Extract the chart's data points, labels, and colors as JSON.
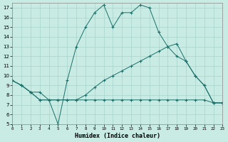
{
  "xlabel": "Humidex (Indice chaleur)",
  "xlim": [
    0,
    23
  ],
  "ylim": [
    5,
    17.5
  ],
  "yticks": [
    5,
    6,
    7,
    8,
    9,
    10,
    11,
    12,
    13,
    14,
    15,
    16,
    17
  ],
  "xticks": [
    0,
    1,
    2,
    3,
    4,
    5,
    6,
    7,
    8,
    9,
    10,
    11,
    12,
    13,
    14,
    15,
    16,
    17,
    18,
    19,
    20,
    21,
    22,
    23
  ],
  "bg_color": "#c8ebe4",
  "line_color": "#1a7068",
  "grid_color": "#a8d4cc",
  "line1_x": [
    0,
    1,
    2,
    3,
    4,
    5,
    6,
    7,
    8,
    9,
    10,
    11,
    12,
    13,
    14,
    15,
    16,
    17,
    18,
    19,
    20,
    21,
    22,
    23
  ],
  "line1_y": [
    9.5,
    9.0,
    8.3,
    7.5,
    7.5,
    5.0,
    9.5,
    13.0,
    15.0,
    16.5,
    17.3,
    15.0,
    16.5,
    16.5,
    17.3,
    17.0,
    14.5,
    13.0,
    12.0,
    11.5,
    10.0,
    9.0,
    7.2,
    7.2
  ],
  "line2_x": [
    0,
    1,
    2,
    3,
    4,
    5,
    6,
    7,
    8,
    9,
    10,
    11,
    12,
    13,
    14,
    15,
    16,
    17,
    18,
    19,
    20,
    21,
    22,
    23
  ],
  "line2_y": [
    9.5,
    9.0,
    8.3,
    8.3,
    7.5,
    7.5,
    7.5,
    7.5,
    8.0,
    8.8,
    9.5,
    10.0,
    10.5,
    11.0,
    11.5,
    12.0,
    12.5,
    13.0,
    13.3,
    11.5,
    10.0,
    9.0,
    7.2,
    7.2
  ],
  "line3_x": [
    0,
    1,
    2,
    3,
    4,
    5,
    6,
    7,
    8,
    9,
    10,
    11,
    12,
    13,
    14,
    15,
    16,
    17,
    18,
    19,
    20,
    21,
    22,
    23
  ],
  "line3_y": [
    9.5,
    9.0,
    8.3,
    7.5,
    7.5,
    7.5,
    7.5,
    7.5,
    7.5,
    7.5,
    7.5,
    7.5,
    7.5,
    7.5,
    7.5,
    7.5,
    7.5,
    7.5,
    7.5,
    7.5,
    7.5,
    7.5,
    7.2,
    7.2
  ]
}
